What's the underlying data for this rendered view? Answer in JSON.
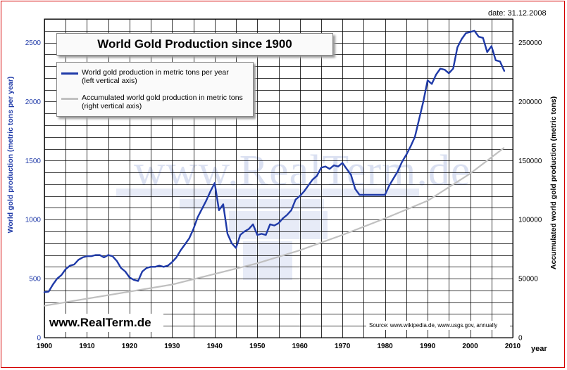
{
  "date_label": "date: 31.12.2008",
  "title": "World Gold Production since 1900",
  "watermark": "www.RealTerm.de",
  "site_label": "www.RealTerm.de",
  "source_note": "Source: www.wikipedia.de, www.usgs.gov, annually",
  "colors": {
    "series_annual": "#1f3aa8",
    "series_accumulated": "#c0c0c0",
    "frame": "#d40000",
    "grid": "#000000"
  },
  "chart_data": {
    "type": "line",
    "title": "World Gold Production since 1900",
    "xlabel": "year",
    "ylabel_left": "World gold production  (metric tons per year)",
    "ylabel_right": "Accumulated world gold production (metric tons)",
    "xlim": [
      1900,
      2010
    ],
    "ylim_left": [
      0,
      2700
    ],
    "ylim_right": [
      0,
      270000
    ],
    "x_ticks": [
      "1900",
      "1910",
      "1920",
      "1930",
      "1940",
      "1950",
      "1960",
      "1970",
      "1980",
      "1990",
      "2000",
      "2010"
    ],
    "y_left_ticks": [
      "0",
      "500",
      "1000",
      "1500",
      "2000",
      "2500"
    ],
    "y_right_ticks": [
      "0",
      "50000",
      "100000",
      "150000",
      "200000",
      "250000"
    ],
    "legend": [
      {
        "label": "World gold production in metric tons per year",
        "note": "(left vertical axis)"
      },
      {
        "label": "Accumulated world gold production in metric tons",
        "note": "(right vertical axis)"
      }
    ],
    "series": [
      {
        "name": "World gold production in metric tons per year",
        "axis": "left",
        "x": [
          1900,
          1901,
          1902,
          1903,
          1904,
          1905,
          1906,
          1907,
          1908,
          1909,
          1910,
          1911,
          1912,
          1913,
          1914,
          1915,
          1916,
          1917,
          1918,
          1919,
          1920,
          1921,
          1922,
          1923,
          1924,
          1925,
          1926,
          1927,
          1928,
          1929,
          1930,
          1931,
          1932,
          1933,
          1934,
          1935,
          1936,
          1937,
          1938,
          1939,
          1940,
          1941,
          1942,
          1943,
          1944,
          1945,
          1946,
          1947,
          1948,
          1949,
          1950,
          1951,
          1952,
          1953,
          1954,
          1955,
          1956,
          1957,
          1958,
          1959,
          1960,
          1961,
          1962,
          1963,
          1964,
          1965,
          1966,
          1967,
          1968,
          1969,
          1970,
          1971,
          1972,
          1973,
          1974,
          1975,
          1976,
          1977,
          1978,
          1979,
          1980,
          1981,
          1982,
          1983,
          1984,
          1985,
          1986,
          1987,
          1988,
          1989,
          1990,
          1991,
          1992,
          1993,
          1994,
          1995,
          1996,
          1997,
          1998,
          1999,
          2000,
          2001,
          2002,
          2003,
          2004,
          2005,
          2006,
          2007,
          2008
        ],
        "values": [
          385,
          390,
          450,
          500,
          530,
          580,
          610,
          620,
          660,
          680,
          690,
          690,
          700,
          700,
          680,
          700,
          690,
          650,
          590,
          560,
          510,
          490,
          480,
          560,
          590,
          600,
          600,
          610,
          600,
          610,
          640,
          680,
          740,
          790,
          840,
          920,
          1020,
          1090,
          1160,
          1240,
          1310,
          1080,
          1130,
          880,
          800,
          760,
          870,
          900,
          920,
          960,
          870,
          880,
          870,
          960,
          950,
          970,
          1010,
          1040,
          1080,
          1170,
          1200,
          1240,
          1290,
          1340,
          1370,
          1440,
          1450,
          1430,
          1460,
          1450,
          1480,
          1430,
          1380,
          1260,
          1210,
          1210,
          1210,
          1210,
          1210,
          1210,
          1210,
          1290,
          1350,
          1410,
          1490,
          1550,
          1620,
          1700,
          1850,
          2000,
          2180,
          2150,
          2230,
          2280,
          2270,
          2240,
          2280,
          2460,
          2530,
          2580,
          2590,
          2600,
          2550,
          2540,
          2420,
          2470,
          2350,
          2340,
          2260
        ]
      },
      {
        "name": "Accumulated world gold production in metric tons",
        "axis": "right",
        "x": [
          1900,
          1910,
          1920,
          1930,
          1940,
          1950,
          1960,
          1970,
          1980,
          1990,
          2000,
          2008
        ],
        "values": [
          27000,
          33000,
          39000,
          45000,
          54000,
          63000,
          74000,
          87000,
          101000,
          116000,
          139000,
          161000
        ]
      }
    ]
  }
}
